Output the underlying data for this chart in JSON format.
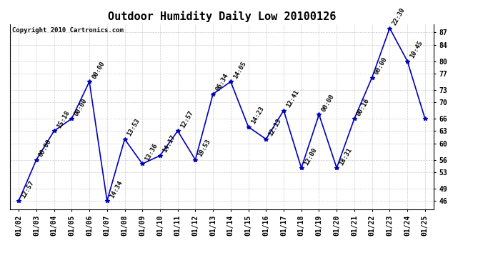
{
  "title": "Outdoor Humidity Daily Low 20100126",
  "copyright": "Copyright 2010 Cartronics.com",
  "x_labels": [
    "01/02",
    "01/03",
    "01/04",
    "01/05",
    "01/06",
    "01/07",
    "01/08",
    "01/09",
    "01/10",
    "01/11",
    "01/12",
    "01/13",
    "01/14",
    "01/15",
    "01/16",
    "01/17",
    "01/18",
    "01/19",
    "01/20",
    "01/21",
    "01/22",
    "01/23",
    "01/24",
    "01/25"
  ],
  "y_values": [
    46,
    56,
    63,
    66,
    75,
    46,
    61,
    55,
    57,
    63,
    56,
    72,
    75,
    64,
    61,
    68,
    54,
    67,
    54,
    66,
    76,
    88,
    80,
    66
  ],
  "point_labels": [
    "12:57",
    "00:00",
    "15:18",
    "00:00",
    "00:00",
    "14:34",
    "13:53",
    "13:36",
    "14:17",
    "12:57",
    "19:53",
    "06:34",
    "14:05",
    "14:23",
    "12:13",
    "12:41",
    "12:00",
    "00:00",
    "18:31",
    "00:16",
    "00:00",
    "22:30",
    "10:45",
    ""
  ],
  "ylim": [
    44,
    89
  ],
  "yticks": [
    46,
    49,
    53,
    56,
    60,
    63,
    66,
    70,
    73,
    77,
    80,
    84,
    87
  ],
  "line_color": "#0000bb",
  "marker_color": "#0000bb",
  "bg_color": "#ffffff",
  "grid_color": "#cccccc",
  "title_fontsize": 11,
  "label_fontsize": 7,
  "annot_fontsize": 6.5,
  "copyright_fontsize": 6.5,
  "fig_width": 6.9,
  "fig_height": 3.75,
  "dpi": 100
}
